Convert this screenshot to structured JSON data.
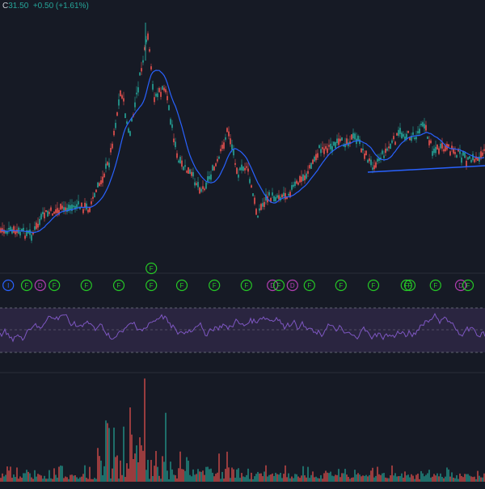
{
  "header": {
    "symbol_label": "C",
    "last_price": "31.50",
    "change": "+0.50",
    "change_pct": "(+1.61%)"
  },
  "colors": {
    "background": "#161a25",
    "up": "#26a69a",
    "down": "#ef5350",
    "ma_line": "#2962ff",
    "trendline": "#2962ff",
    "oscillator": "#7e57c2",
    "osc_band": "#2a2540",
    "marker_f": "#26c826",
    "marker_d": "#b23fb2",
    "marker_i": "#2962ff"
  },
  "signal_markers": [
    {
      "letter": "I",
      "t": 0.017
    },
    {
      "letter": "F",
      "t": 0.055
    },
    {
      "letter": "D",
      "t": 0.083
    },
    {
      "letter": "F",
      "t": 0.112
    },
    {
      "letter": "F",
      "t": 0.178
    },
    {
      "letter": "F",
      "t": 0.245
    },
    {
      "letter": "F",
      "t": 0.312
    },
    {
      "letter": "F",
      "t": 0.375
    },
    {
      "letter": "F",
      "t": 0.442
    },
    {
      "letter": "F",
      "t": 0.508
    },
    {
      "letter": "D",
      "t": 0.562
    },
    {
      "letter": "F",
      "t": 0.575
    },
    {
      "letter": "D",
      "t": 0.603
    },
    {
      "letter": "F",
      "t": 0.638
    },
    {
      "letter": "F",
      "t": 0.703
    },
    {
      "letter": "F",
      "t": 0.77
    },
    {
      "letter": "F",
      "t": 0.838
    },
    {
      "letter": "F",
      "t": 0.845
    },
    {
      "letter": "F",
      "t": 0.898
    },
    {
      "letter": "D",
      "t": 0.95
    },
    {
      "letter": "F",
      "t": 0.965
    }
  ],
  "raised_markers": [
    {
      "letter": "F",
      "t": 0.312
    }
  ]
}
